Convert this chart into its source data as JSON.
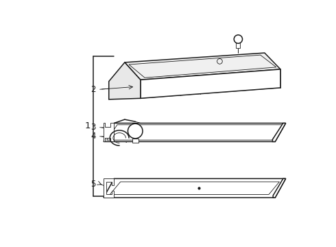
{
  "bg_color": "#ffffff",
  "line_color": "#1a1a1a",
  "line_width": 1.1,
  "thin_line": 0.6,
  "label_fontsize": 8.5,
  "fig_w": 4.9,
  "fig_h": 3.6,
  "dpi": 100
}
